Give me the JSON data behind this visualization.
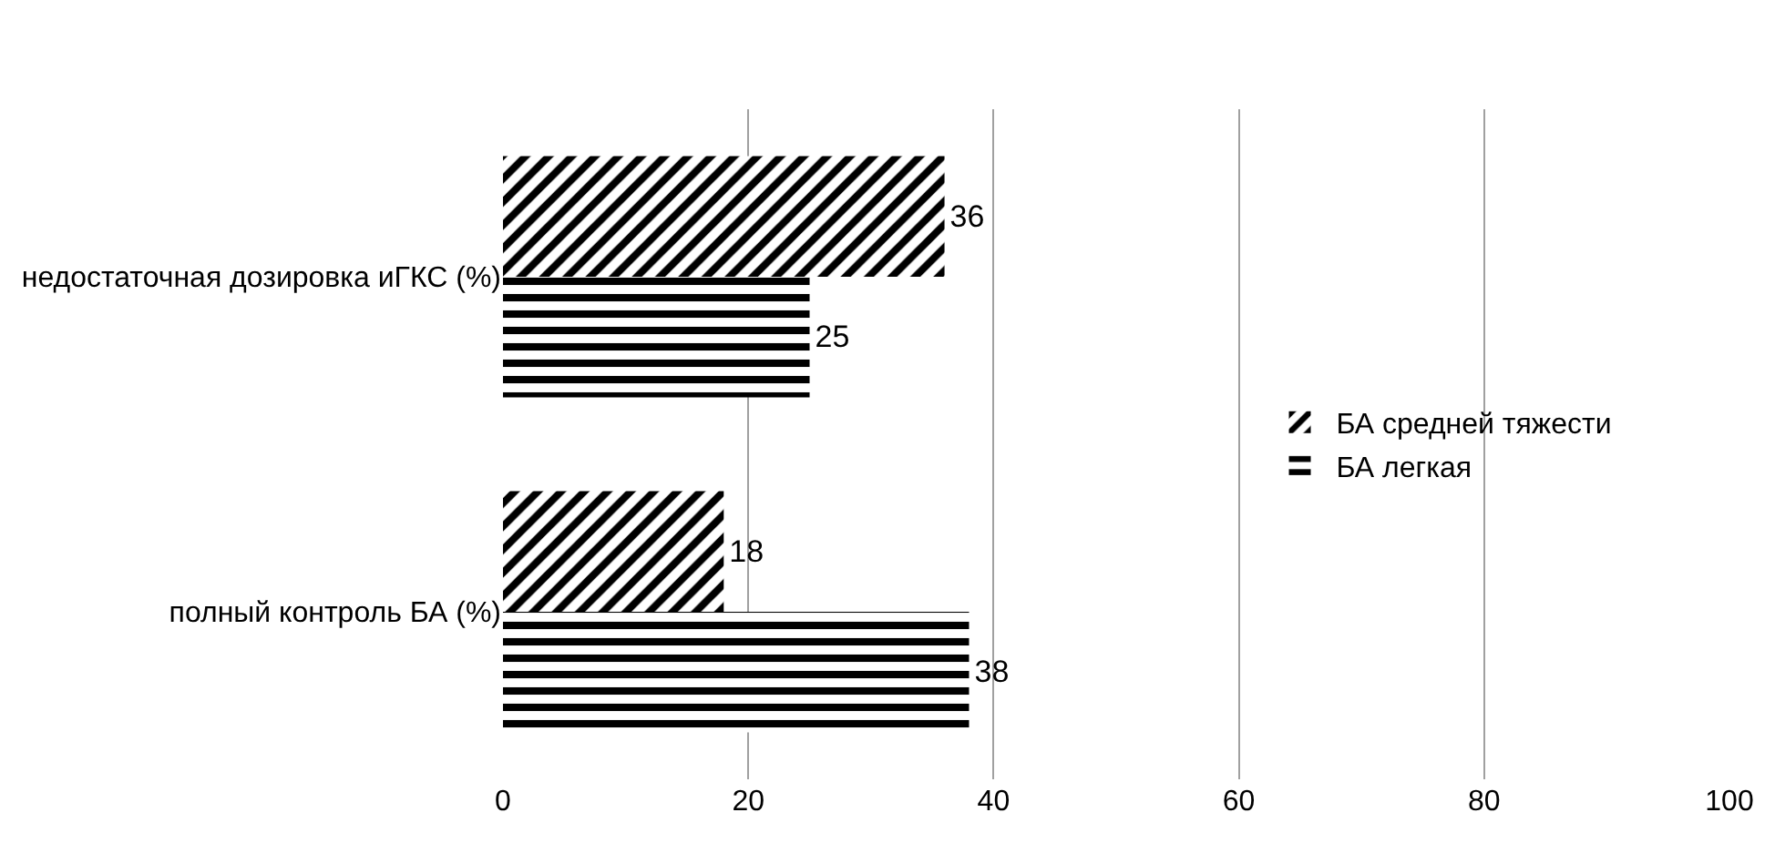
{
  "chart_data": {
    "type": "bar",
    "orientation": "horizontal",
    "categories": [
      "недостаточная дозировка иГКС (%)",
      "полный контроль БА (%)"
    ],
    "series": [
      {
        "name": "БА средней тяжести",
        "color": "#000000",
        "values": [
          36,
          18
        ]
      },
      {
        "name": "БА легкая",
        "color": "#000000",
        "values": [
          25,
          38
        ]
      }
    ],
    "xlim": [
      0,
      100
    ],
    "xticks": [
      0,
      20,
      40,
      60,
      80,
      100
    ],
    "grid": "x",
    "legend": "right",
    "data_labels": true
  }
}
